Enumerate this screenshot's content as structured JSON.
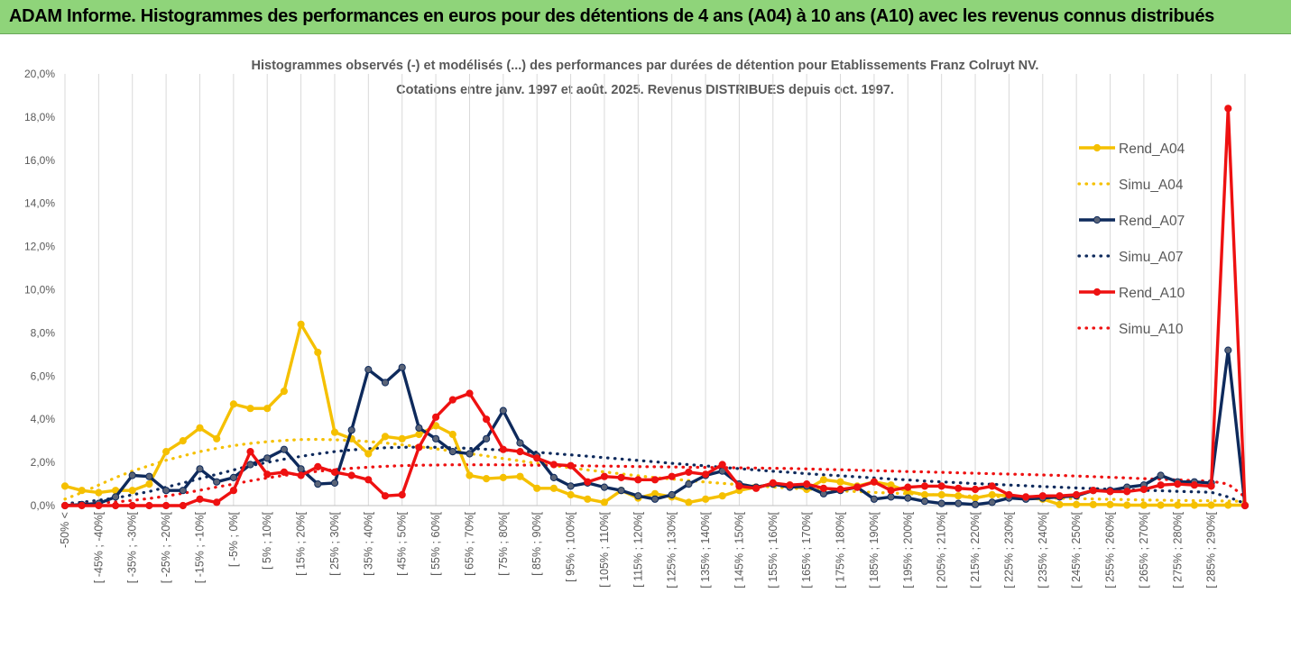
{
  "header": {
    "title": "ADAM Informe. Histogrammes des performances en euros pour des détentions de 4 ans (A04) à 10 ans (A10) avec les revenus connus distribués"
  },
  "colors": {
    "A04": "#f5c000",
    "A07": "#0e2a5c",
    "A10": "#ee1111",
    "header_bg": "#8fd47a",
    "grid": "#d9d9d9"
  },
  "chart_data": {
    "type": "line",
    "title": "Histogrammes observés (-) et modélisés (...) des performances par durées de détention pour Etablissements Franz Colruyt NV.",
    "subtitle": "Cotations entre janv. 1997 et août. 2025. Revenus DISTRIBUES depuis oct. 1997.",
    "xlabel": "",
    "ylabel": "",
    "ylim": [
      0,
      20
    ],
    "yticks": [
      "0,0%",
      "2,0%",
      "4,0%",
      "6,0%",
      "8,0%",
      "10,0%",
      "12,0%",
      "14,0%",
      "16,0%",
      "18,0%",
      "20,0%"
    ],
    "grid": "vertical",
    "legend_position": "right",
    "categories": [
      "-50% <",
      "[ -50% ; -45%[",
      "[ -45% ; -40%[",
      "[ -40% ; -35%[",
      "[ -35% ; -30%[",
      "[ -30% ; -25%[",
      "[ -25% ; -20%[",
      "[ -20% ; -15%[",
      "[ -15% ; -10%[",
      "[ -10% ; -5%[",
      "[ -5% ; 0%[",
      "[ 0% ; 5%[",
      "[ 5% ; 10%[",
      "[ 10% ; 15%[",
      "[ 15% ; 20%[",
      "[ 20% ; 25%[",
      "[ 25% ; 30%[",
      "[ 30% ; 35%[",
      "[ 35% ; 40%[",
      "[ 40% ; 45%[",
      "[ 45% ; 50%[",
      "[ 50% ; 55%[",
      "[ 55% ; 60%[",
      "[ 60% ; 65%[",
      "[ 65% ; 70%[",
      "[ 70% ; 75%[",
      "[ 75% ; 80%[",
      "[ 80% ; 85%[",
      "[ 85% ; 90%[",
      "[ 90% ; 95%[",
      "[ 95% ; 100%[",
      "[ 100% ; 105%[",
      "[ 105% ; 110%[",
      "[ 110% ; 115%[",
      "[ 115% ; 120%[",
      "[ 120% ; 125%[",
      "[ 125% ; 130%[",
      "[ 130% ; 135%[",
      "[ 135% ; 140%[",
      "[ 140% ; 145%[",
      "[ 145% ; 150%[",
      "[ 150% ; 155%[",
      "[ 155% ; 160%[",
      "[ 160% ; 165%[",
      "[ 165% ; 170%[",
      "[ 170% ; 175%[",
      "[ 175% ; 180%[",
      "[ 180% ; 185%[",
      "[ 185% ; 190%[",
      "[ 190% ; 195%[",
      "[ 195% ; 200%[",
      "[ 200% ; 205%[",
      "[ 205% ; 210%[",
      "[ 210% ; 215%[",
      "[ 215% ; 220%[",
      "[ 220% ; 225%[",
      "[ 225% ; 230%[",
      "[ 230% ; 235%[",
      "[ 235% ; 240%[",
      "[ 240% ; 245%[",
      "[ 245% ; 250%[",
      "[ 250% ; 255%[",
      "[ 255% ; 260%[",
      "[ 260% ; 265%[",
      "[ 265% ; 270%[",
      "[ 270% ; 275%[",
      "[ 275% ; 280%[",
      "[ 280% ; 285%[",
      "[ 285% ; 290%[",
      "[ 290% ; 295%[",
      "> 295%"
    ],
    "visible_tick_labels": [
      "-50% <",
      "[ -45% ; -40%[",
      "[ -35% ; -30%[",
      "[ -25% ; -20%[",
      "[ -15% ; -10%[",
      "[ -5% ; 0%[",
      "[ 5% ; 10%[",
      "[ 15% ; 20%[",
      "[ 25% ; 30%[",
      "[ 35% ; 40%[",
      "[ 45% ; 50%[",
      "[ 55% ; 60%[",
      "[ 65% ; 70%[",
      "[ 75% ; 80%[",
      "[ 85% ; 90%[",
      "[ 95% ; 100%[",
      "[ 105% ; 110%[",
      "[ 115% ; 120%[",
      "[ 125% ; 130%[",
      "[ 135% ; 140%[",
      "[ 145% ; 150%[",
      "[ 155% ; 160%[",
      "[ 165% ; 170%[",
      "[ 175% ; 180%[",
      "[ 185% ; 190%[",
      "[ 195% ; 200%[",
      "[ 205% ; 210%[",
      "[ 215% ; 220%[",
      "[ 225% ; 230%[",
      "[ 235% ; 240%[",
      "[ 245% ; 250%[",
      "[ 255% ; 260%[",
      "[ 265% ; 270%[",
      "[ 275% ; 280%[",
      "[ 285% ; 290%["
    ],
    "series": [
      {
        "name": "Rend_A04",
        "style": "solid",
        "color": "#f5c000",
        "values": [
          0.9,
          0.7,
          0.6,
          0.7,
          0.7,
          1.0,
          2.5,
          3.0,
          3.6,
          3.1,
          4.7,
          4.5,
          4.5,
          5.3,
          8.4,
          7.1,
          3.4,
          3.1,
          2.4,
          3.2,
          3.1,
          3.3,
          3.7,
          3.3,
          1.4,
          1.25,
          1.3,
          1.35,
          0.8,
          0.8,
          0.5,
          0.3,
          0.15,
          0.7,
          0.35,
          0.55,
          0.4,
          0.15,
          0.3,
          0.45,
          0.7,
          0.85,
          1.0,
          0.95,
          0.75,
          1.2,
          1.1,
          0.9,
          1.1,
          0.95,
          0.65,
          0.5,
          0.5,
          0.45,
          0.35,
          0.5,
          0.45,
          0.35,
          0.3,
          0.05,
          0.05,
          0.05,
          0.05,
          0.02,
          0.02,
          0.02,
          0.02,
          0.02,
          0.02,
          0.02,
          0.02
        ]
      },
      {
        "name": "Simu_A04",
        "style": "dotted",
        "color": "#f5c000",
        "values": [
          0.3,
          0.6,
          0.95,
          1.3,
          1.6,
          1.85,
          2.1,
          2.3,
          2.5,
          2.65,
          2.78,
          2.88,
          2.96,
          3.02,
          3.06,
          3.07,
          3.05,
          3.02,
          2.97,
          2.9,
          2.82,
          2.73,
          2.63,
          2.52,
          2.41,
          2.3,
          2.18,
          2.07,
          1.96,
          1.85,
          1.75,
          1.65,
          1.56,
          1.47,
          1.38,
          1.3,
          1.23,
          1.16,
          1.09,
          1.03,
          0.97,
          0.91,
          0.86,
          0.81,
          0.77,
          0.72,
          0.68,
          0.65,
          0.61,
          0.58,
          0.55,
          0.52,
          0.49,
          0.46,
          0.44,
          0.42,
          0.4,
          0.38,
          0.36,
          0.34,
          0.32,
          0.31,
          0.29,
          0.28,
          0.26,
          0.25,
          0.24,
          0.23,
          0.22,
          0.21,
          0.2
        ]
      },
      {
        "name": "Rend_A07",
        "style": "solid",
        "color": "#0e2a5c",
        "values": [
          0.0,
          0.05,
          0.1,
          0.4,
          1.4,
          1.35,
          0.7,
          0.7,
          1.7,
          1.1,
          1.3,
          1.9,
          2.2,
          2.6,
          1.7,
          1.0,
          1.05,
          3.5,
          6.3,
          5.7,
          6.4,
          3.6,
          3.1,
          2.5,
          2.4,
          3.1,
          4.4,
          2.9,
          2.3,
          1.3,
          0.9,
          1.05,
          0.85,
          0.7,
          0.45,
          0.3,
          0.5,
          1.0,
          1.4,
          1.6,
          1.0,
          0.85,
          1.0,
          0.85,
          0.9,
          0.55,
          0.7,
          0.85,
          0.3,
          0.4,
          0.35,
          0.2,
          0.1,
          0.1,
          0.05,
          0.15,
          0.35,
          0.3,
          0.35,
          0.4,
          0.45,
          0.7,
          0.7,
          0.85,
          0.95,
          1.4,
          1.1,
          1.1,
          1.05,
          7.2,
          0.0
        ]
      },
      {
        "name": "Simu_A07",
        "style": "dotted",
        "color": "#0e2a5c",
        "values": [
          0.1,
          0.15,
          0.25,
          0.35,
          0.5,
          0.65,
          0.85,
          1.05,
          1.25,
          1.45,
          1.65,
          1.85,
          2.0,
          2.15,
          2.28,
          2.4,
          2.5,
          2.58,
          2.64,
          2.68,
          2.7,
          2.71,
          2.7,
          2.68,
          2.65,
          2.61,
          2.57,
          2.52,
          2.47,
          2.41,
          2.35,
          2.29,
          2.22,
          2.16,
          2.09,
          2.03,
          1.96,
          1.9,
          1.84,
          1.77,
          1.71,
          1.65,
          1.59,
          1.54,
          1.48,
          1.43,
          1.38,
          1.33,
          1.28,
          1.23,
          1.19,
          1.14,
          1.1,
          1.06,
          1.02,
          0.99,
          0.95,
          0.92,
          0.88,
          0.85,
          0.82,
          0.79,
          0.76,
          0.74,
          0.71,
          0.69,
          0.66,
          0.64,
          0.62,
          0.4,
          0.1
        ]
      },
      {
        "name": "Rend_A10",
        "style": "solid",
        "color": "#ee1111",
        "values": [
          0.0,
          0.0,
          0.0,
          0.0,
          0.0,
          0.0,
          0.0,
          0.0,
          0.3,
          0.15,
          0.7,
          2.5,
          1.45,
          1.55,
          1.4,
          1.8,
          1.55,
          1.4,
          1.2,
          0.45,
          0.5,
          2.7,
          4.1,
          4.9,
          5.2,
          4.0,
          2.6,
          2.5,
          2.2,
          1.9,
          1.85,
          1.1,
          1.35,
          1.3,
          1.2,
          1.2,
          1.35,
          1.55,
          1.45,
          1.9,
          0.9,
          0.8,
          1.05,
          0.95,
          1.0,
          0.8,
          0.75,
          0.85,
          1.1,
          0.7,
          0.85,
          0.9,
          0.9,
          0.8,
          0.75,
          0.9,
          0.5,
          0.4,
          0.45,
          0.45,
          0.5,
          0.7,
          0.65,
          0.65,
          0.75,
          0.95,
          1.0,
          0.95,
          0.9,
          18.4,
          0.0
        ]
      },
      {
        "name": "Simu_A10",
        "style": "dotted",
        "color": "#ee1111",
        "values": [
          0.05,
          0.08,
          0.12,
          0.17,
          0.24,
          0.33,
          0.44,
          0.57,
          0.71,
          0.86,
          1.0,
          1.15,
          1.28,
          1.4,
          1.5,
          1.59,
          1.67,
          1.73,
          1.78,
          1.82,
          1.85,
          1.87,
          1.88,
          1.89,
          1.89,
          1.89,
          1.89,
          1.88,
          1.87,
          1.86,
          1.85,
          1.84,
          1.83,
          1.82,
          1.81,
          1.8,
          1.79,
          1.78,
          1.77,
          1.76,
          1.75,
          1.74,
          1.73,
          1.72,
          1.7,
          1.68,
          1.66,
          1.64,
          1.62,
          1.6,
          1.58,
          1.56,
          1.54,
          1.52,
          1.5,
          1.48,
          1.46,
          1.44,
          1.42,
          1.4,
          1.37,
          1.34,
          1.31,
          1.28,
          1.25,
          1.22,
          1.19,
          1.16,
          1.13,
          1.0,
          0.4
        ]
      }
    ]
  }
}
